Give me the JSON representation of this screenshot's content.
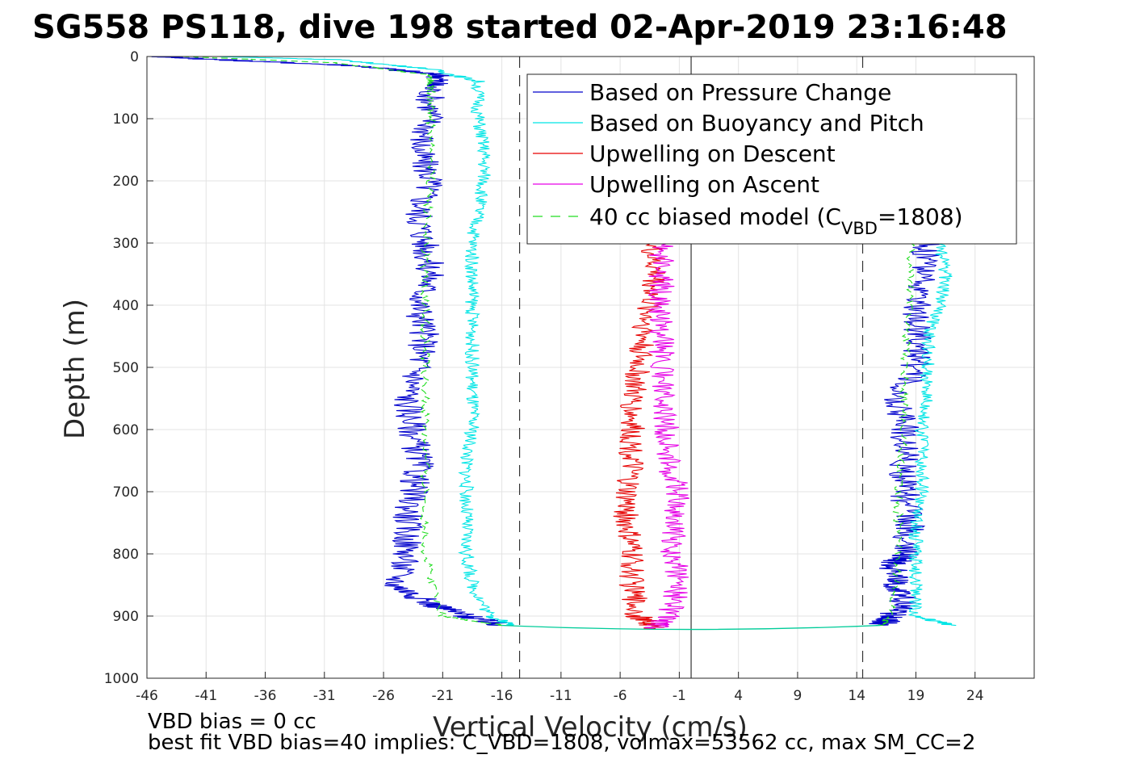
{
  "chart_data": {
    "type": "line",
    "title": "SG558 PS118, dive 198 started 02-Apr-2019 23:16:48",
    "xlabel": "Vertical Velocity (cm/s)",
    "ylabel": "Depth (m)",
    "xlim": [
      -46,
      29
    ],
    "ylim": [
      0,
      1000
    ],
    "y_reversed": true,
    "grid": true,
    "x_ticks": [
      "-46",
      "-41",
      "-36",
      "-31",
      "-26",
      "-21",
      "-16",
      "-11",
      "-6",
      "-1",
      "4",
      "9",
      "14",
      "19",
      "24"
    ],
    "y_ticks": [
      "0",
      "100",
      "200",
      "300",
      "400",
      "500",
      "600",
      "700",
      "800",
      "900",
      "1000"
    ],
    "legend_position": "top-right",
    "legend": {
      "pressure": "Based on Pressure Change",
      "buoyancy": "Based on Buoyancy and Pitch",
      "up_desc": "Upwelling on Descent",
      "up_asc": "Upwelling on Ascent",
      "model_prefix": "40 cc biased model (C",
      "model_sub": "VBD",
      "model_suffix": "=1808)"
    },
    "reference_lines": [
      {
        "x": -14.5,
        "style": "dashed"
      },
      {
        "x": 0,
        "style": "solid"
      },
      {
        "x": 14.5,
        "style": "dashed"
      }
    ],
    "colors": {
      "pressure": "#0000cc",
      "buoyancy": "#00e5e5",
      "up_desc": "#e60000",
      "up_asc": "#e600e6",
      "model": "#22dd22"
    },
    "series": [
      {
        "name": "Based on Pressure Change",
        "key": "pressure",
        "descent": {
          "depth": [
            0,
            5,
            15,
            30,
            50,
            100,
            150,
            200,
            250,
            300,
            350,
            400,
            450,
            500,
            550,
            600,
            650,
            700,
            750,
            800,
            850,
            880,
            900,
            915
          ],
          "velocity": [
            -45,
            -40,
            -28,
            -21,
            -22,
            -22,
            -23,
            -22,
            -23,
            -22.5,
            -22,
            -23,
            -22.5,
            -23,
            -24,
            -23.5,
            -23,
            -23.5,
            -24,
            -24,
            -25,
            -22,
            -19,
            -16
          ]
        },
        "ascent": {
          "depth": [
            915,
            900,
            880,
            850,
            820,
            800,
            750,
            700,
            650,
            600,
            550,
            500,
            450,
            400,
            350,
            300
          ],
          "velocity": [
            16,
            17,
            18,
            17.5,
            17,
            18,
            18.5,
            18,
            18,
            18,
            17.5,
            19,
            19,
            19,
            19.5,
            20
          ]
        }
      },
      {
        "name": "Based on Buoyancy and Pitch",
        "key": "buoyancy",
        "descent": {
          "depth": [
            0,
            5,
            20,
            40,
            100,
            150,
            200,
            250,
            300,
            350,
            400,
            450,
            500,
            550,
            600,
            650,
            700,
            750,
            800,
            850,
            900,
            915
          ],
          "velocity": [
            -40,
            -30,
            -22,
            -18,
            -18,
            -17.5,
            -17.5,
            -18,
            -18.5,
            -18.5,
            -18.5,
            -18.5,
            -18.5,
            -18.5,
            -18.5,
            -19,
            -19,
            -19,
            -19,
            -18.5,
            -17,
            -15
          ]
        },
        "ascent": {
          "depth": [
            915,
            900,
            850,
            800,
            750,
            700,
            650,
            600,
            550,
            500,
            450,
            400,
            350,
            300
          ],
          "velocity": [
            22,
            19,
            19,
            19,
            19,
            19.5,
            19.5,
            19.5,
            20,
            20,
            20,
            21,
            21.5,
            21
          ]
        }
      },
      {
        "name": "Upwelling on Descent",
        "key": "up_desc",
        "descent": {
          "depth": [
            300,
            350,
            400,
            450,
            500,
            550,
            600,
            650,
            700,
            750,
            800,
            850,
            900,
            920
          ],
          "velocity": [
            -3.5,
            -3,
            -3.5,
            -4,
            -4.5,
            -5,
            -5,
            -5,
            -5.5,
            -5.5,
            -5,
            -5,
            -4.5,
            -3
          ]
        }
      },
      {
        "name": "Upwelling on Ascent",
        "key": "up_asc",
        "ascent": {
          "depth": [
            920,
            900,
            850,
            800,
            750,
            700,
            650,
            600,
            550,
            500,
            450,
            400,
            350,
            300
          ],
          "velocity": [
            -3,
            -2,
            -1,
            -1.5,
            -1.5,
            -1,
            -2,
            -2,
            -2.5,
            -2.5,
            -2.5,
            -2.5,
            -2.5,
            -2.5
          ]
        }
      },
      {
        "name": "40 cc biased model (CVBD=1808)",
        "key": "model",
        "descent": {
          "depth": [
            0,
            10,
            30,
            50,
            100,
            200,
            300,
            400,
            500,
            600,
            700,
            800,
            900,
            915
          ],
          "velocity": [
            -43,
            -30,
            -22,
            -22,
            -22,
            -22,
            -22.5,
            -22.5,
            -22.5,
            -22.5,
            -22.5,
            -22.5,
            -21,
            -16
          ]
        },
        "ascent": {
          "depth": [
            915,
            900,
            800,
            700,
            600,
            500,
            400,
            300
          ],
          "velocity": [
            16,
            17,
            17.5,
            17.5,
            18,
            18,
            18.5,
            18.5
          ]
        }
      }
    ],
    "footer": {
      "line1": "VBD bias = 0 cc",
      "line2": "best fit VBD bias=40 implies: C_VBD=1808, volmax=53562 cc, max SM_CC=2"
    }
  }
}
